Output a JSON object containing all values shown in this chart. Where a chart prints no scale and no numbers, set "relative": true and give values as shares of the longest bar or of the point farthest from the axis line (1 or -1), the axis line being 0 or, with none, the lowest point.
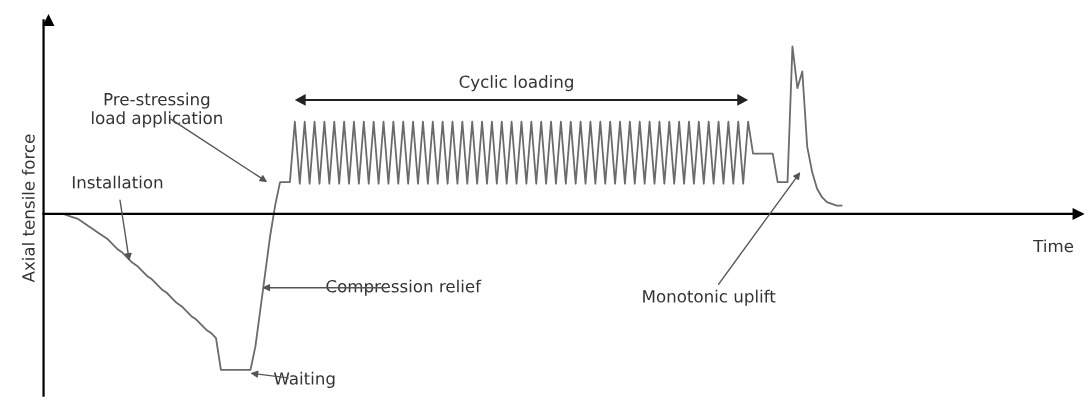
{
  "chart_data": {
    "type": "line",
    "relative": true,
    "ylabel": "Axial tensile force",
    "grid": false,
    "legend": false,
    "categories": [
      null,
      null,
      null,
      null,
      null,
      null,
      null,
      null,
      null,
      null,
      null,
      null,
      null,
      null,
      null,
      null,
      null,
      null,
      null,
      null,
      null,
      null,
      null,
      null,
      null,
      null,
      null,
      null,
      null,
      null,
      null,
      null,
      null,
      null,
      null,
      null,
      null,
      null,
      null,
      null,
      null,
      null,
      null,
      null,
      null,
      null,
      null,
      null,
      null,
      null,
      null,
      null,
      null,
      null,
      null,
      null,
      null,
      null,
      null,
      null,
      null,
      null,
      null,
      null,
      null,
      null,
      null,
      null,
      null,
      null,
      null,
      null,
      null,
      null,
      null,
      null,
      null,
      null,
      null,
      null,
      null,
      null,
      null,
      null,
      null,
      null,
      null,
      null,
      null,
      null,
      null,
      null,
      null,
      null,
      null,
      null,
      null,
      null,
      null,
      null,
      null,
      null,
      null,
      null,
      null,
      null,
      null,
      null,
      null,
      null,
      null,
      null,
      null,
      null,
      null,
      null,
      null,
      null,
      null,
      null,
      null,
      null,
      null,
      null,
      null,
      null,
      null,
      null,
      null,
      null,
      null,
      null,
      null,
      null,
      null,
      null,
      null,
      null,
      null,
      null,
      null,
      null,
      null,
      null,
      null,
      null,
      null,
      null,
      null,
      null,
      null,
      null,
      null,
      null,
      null,
      null,
      null,
      null,
      null,
      null,
      null,
      null
    ],
    "series": [
      {
        "color": "#6b6b6b",
        "values": [
          0,
          0,
          0,
          0,
          -0.01,
          -0.02,
          -0.03,
          -0.05,
          -0.07,
          -0.09,
          -0.11,
          -0.13,
          -0.15,
          -0.18,
          -0.21,
          -0.23,
          -0.26,
          -0.29,
          -0.31,
          -0.34,
          -0.37,
          -0.39,
          -0.42,
          -0.45,
          -0.47,
          -0.5,
          -0.53,
          -0.55,
          -0.58,
          -0.61,
          -0.63,
          -0.66,
          -0.69,
          -0.71,
          -0.74,
          -0.93,
          -0.93,
          -0.93,
          -0.93,
          -0.93,
          -0.93,
          -0.93,
          -0.79,
          -0.57,
          -0.35,
          -0.13,
          0.05,
          0.19,
          0.19,
          0.19,
          0.55,
          0.18,
          0.55,
          0.18,
          0.55,
          0.18,
          0.55,
          0.18,
          0.55,
          0.18,
          0.55,
          0.18,
          0.55,
          0.18,
          0.55,
          0.18,
          0.55,
          0.18,
          0.55,
          0.18,
          0.55,
          0.18,
          0.55,
          0.18,
          0.55,
          0.18,
          0.55,
          0.18,
          0.55,
          0.18,
          0.55,
          0.18,
          0.55,
          0.18,
          0.55,
          0.18,
          0.55,
          0.18,
          0.55,
          0.18,
          0.55,
          0.18,
          0.55,
          0.18,
          0.55,
          0.18,
          0.55,
          0.18,
          0.55,
          0.18,
          0.55,
          0.18,
          0.55,
          0.18,
          0.55,
          0.18,
          0.55,
          0.18,
          0.55,
          0.18,
          0.55,
          0.18,
          0.55,
          0.18,
          0.55,
          0.18,
          0.55,
          0.18,
          0.55,
          0.18,
          0.55,
          0.18,
          0.55,
          0.18,
          0.55,
          0.18,
          0.55,
          0.18,
          0.55,
          0.18,
          0.55,
          0.18,
          0.55,
          0.18,
          0.55,
          0.18,
          0.55,
          0.18,
          0.55,
          0.18,
          0.55,
          0.18,
          0.55,
          0.36,
          0.36,
          0.36,
          0.36,
          0.36,
          0.19,
          0.19,
          0.19,
          1,
          0.75,
          0.85,
          0.4,
          0.25,
          0.15,
          0.1,
          0.07,
          0.06,
          0.05,
          0.05
        ]
      }
    ],
    "annotations": [
      "Pre-stressing\nload application",
      "Installation",
      "Cyclic loading",
      "Compression relief",
      "Waiting",
      "Monotonic uplift",
      "Time"
    ]
  }
}
